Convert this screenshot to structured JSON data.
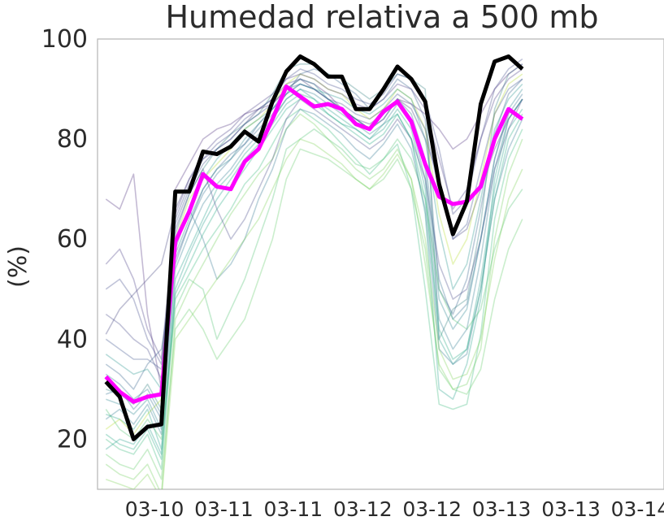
{
  "chart_data": {
    "type": "line",
    "title": "Humedad relativa a 500 mb",
    "ylabel": "(%)",
    "xlabel": "",
    "ylim": [
      10,
      100
    ],
    "yticks": [
      20,
      40,
      60,
      80,
      100
    ],
    "x_range": [
      -0.6,
      40.2
    ],
    "xtick_positions": [
      3.5,
      8.5,
      13.5,
      18.5,
      23.5,
      28.5,
      33.5,
      38.5
    ],
    "xtick_labels": [
      "03-10",
      "03-11",
      "03-11",
      "03-12",
      "03-12",
      "03-13",
      "03-13",
      "03-14"
    ],
    "grid": false,
    "legend": "none",
    "series": [
      {
        "color": "#000000",
        "role": "highlight",
        "values": [
          31.5,
          28.5,
          20,
          22.5,
          23,
          69.5,
          69.5,
          77.5,
          77,
          78.5,
          81.5,
          79.5,
          87.5,
          93.5,
          96.5,
          95,
          92.5,
          92.5,
          86,
          86,
          90,
          94.5,
          92,
          87.5,
          71,
          61,
          67.5,
          87,
          95.5,
          96.5,
          94
        ]
      },
      {
        "color": "#ff00ff",
        "role": "highlight",
        "values": [
          32.5,
          29.5,
          27.5,
          28.5,
          29,
          59.5,
          65.5,
          73,
          70.5,
          70,
          75.5,
          78,
          84,
          90.5,
          88.5,
          86.5,
          87,
          86,
          83,
          82,
          85.5,
          87.5,
          83.5,
          75,
          68.5,
          67,
          67.5,
          70.5,
          80,
          86,
          84
        ]
      },
      {
        "color": "#3b3b7a",
        "values": [
          41,
          46,
          49,
          52,
          55,
          66,
          72,
          76,
          78,
          80,
          83,
          86,
          88,
          91,
          92,
          90,
          88,
          86,
          84,
          83,
          85,
          88,
          86,
          80,
          72,
          60,
          62,
          70,
          78,
          84,
          88
        ]
      },
      {
        "color": "#2e5e8a",
        "values": [
          35,
          33,
          30,
          35,
          38,
          55,
          63,
          70,
          74,
          77,
          79,
          83,
          86,
          89,
          93,
          94,
          93,
          91,
          89,
          86,
          88,
          92,
          90,
          84,
          50,
          45,
          52,
          66,
          81,
          89,
          92
        ]
      },
      {
        "color": "#2a7b7b",
        "values": [
          30,
          29,
          27,
          31,
          26,
          61,
          69,
          74,
          78,
          81,
          83,
          85,
          89,
          94,
          95,
          95,
          93,
          92,
          90,
          88,
          90,
          93,
          92,
          90,
          40,
          46,
          48,
          63,
          86,
          93,
          95
        ]
      },
      {
        "color": "#1f9e89",
        "values": [
          25,
          24,
          22,
          26,
          18,
          52,
          58,
          64,
          70,
          73,
          77,
          80,
          84,
          88,
          90,
          88,
          85,
          83,
          82,
          80,
          83,
          85,
          80,
          65,
          30,
          28,
          35,
          48,
          72,
          84,
          88
        ]
      },
      {
        "color": "#35b779",
        "values": [
          20,
          18,
          17,
          21,
          14,
          48,
          53,
          58,
          62,
          66,
          71,
          74,
          79,
          84,
          86,
          84,
          82,
          79,
          76,
          73,
          76,
          79,
          70,
          50,
          27,
          26,
          27,
          41,
          64,
          76,
          82
        ]
      },
      {
        "color": "#6ece58",
        "values": [
          15,
          13,
          12,
          15,
          9,
          44,
          50,
          55,
          60,
          65,
          69,
          73,
          76,
          82,
          85,
          83,
          80,
          77,
          74,
          72,
          74,
          78,
          72,
          55,
          35,
          30,
          31,
          38,
          60,
          73,
          80
        ]
      },
      {
        "color": "#b5de2b",
        "values": [
          22,
          24,
          21,
          25,
          28,
          60,
          68,
          72,
          75,
          78,
          82,
          84,
          87,
          91,
          93,
          92,
          90,
          89,
          86,
          84,
          86,
          90,
          88,
          82,
          65,
          55,
          60,
          72,
          85,
          91,
          93
        ]
      },
      {
        "color": "#482878",
        "values": [
          68,
          66,
          73,
          45,
          30,
          70,
          75,
          80,
          82,
          83,
          85,
          86,
          87,
          90,
          92,
          91,
          89,
          86,
          84,
          82,
          84,
          88,
          87,
          85,
          82,
          78,
          80,
          85,
          90,
          93,
          95
        ]
      },
      {
        "color": "#3e4989",
        "values": [
          50,
          52,
          48,
          40,
          35,
          64,
          71,
          76,
          79,
          81,
          84,
          86,
          88,
          92,
          94,
          93,
          91,
          90,
          88,
          87,
          89,
          93,
          92,
          88,
          78,
          65,
          68,
          80,
          90,
          94,
          96
        ]
      },
      {
        "color": "#26828e",
        "values": [
          28,
          27,
          25,
          28,
          22,
          57,
          64,
          70,
          74,
          76,
          80,
          83,
          86,
          90,
          92,
          91,
          88,
          86,
          84,
          82,
          85,
          88,
          84,
          74,
          48,
          42,
          46,
          60,
          76,
          86,
          90
        ]
      },
      {
        "color": "#1f9a8a",
        "values": [
          18,
          20,
          19,
          23,
          17,
          50,
          57,
          63,
          68,
          72,
          76,
          79,
          83,
          87,
          89,
          88,
          86,
          84,
          82,
          80,
          82,
          86,
          82,
          70,
          40,
          35,
          38,
          52,
          70,
          82,
          86
        ]
      },
      {
        "color": "#4ac16d",
        "values": [
          26,
          22,
          20,
          24,
          20,
          46,
          52,
          50,
          40,
          46,
          52,
          60,
          68,
          78,
          80,
          82,
          80,
          78,
          75,
          74,
          76,
          80,
          76,
          68,
          50,
          44,
          42,
          46,
          58,
          66,
          70
        ]
      },
      {
        "color": "#2c728e",
        "values": [
          33,
          31,
          28,
          30,
          25,
          58,
          66,
          60,
          52,
          55,
          60,
          68,
          74,
          82,
          86,
          85,
          83,
          81,
          78,
          76,
          79,
          83,
          78,
          66,
          38,
          35,
          37,
          50,
          68,
          78,
          84
        ]
      },
      {
        "color": "#414487",
        "values": [
          45,
          43,
          40,
          38,
          32,
          62,
          69,
          74,
          66,
          60,
          64,
          70,
          76,
          84,
          88,
          86,
          84,
          82,
          80,
          78,
          80,
          84,
          80,
          72,
          55,
          48,
          50,
          60,
          74,
          82,
          88
        ]
      },
      {
        "color": "#5ec962",
        "values": [
          17,
          15,
          14,
          18,
          12,
          42,
          46,
          42,
          36,
          40,
          44,
          52,
          60,
          72,
          78,
          77,
          76,
          74,
          72,
          70,
          72,
          76,
          70,
          58,
          34,
          30,
          29,
          34,
          48,
          58,
          64
        ]
      },
      {
        "color": "#21918c",
        "values": [
          37,
          35,
          33,
          34,
          30,
          60,
          66,
          72,
          76,
          79,
          82,
          84,
          86,
          89,
          91,
          90,
          89,
          88,
          86,
          85,
          87,
          90,
          88,
          80,
          62,
          50,
          55,
          68,
          82,
          88,
          91
        ]
      },
      {
        "color": "#2a788e",
        "values": [
          24,
          26,
          23,
          27,
          21,
          54,
          61,
          67,
          71,
          74,
          78,
          81,
          84,
          88,
          90,
          89,
          87,
          85,
          83,
          81,
          83,
          87,
          83,
          72,
          44,
          38,
          42,
          56,
          74,
          84,
          88
        ]
      },
      {
        "color": "#3b528b",
        "values": [
          40,
          38,
          36,
          36,
          34,
          63,
          70,
          75,
          78,
          80,
          83,
          85,
          87,
          90,
          91,
          90,
          88,
          87,
          85,
          84,
          86,
          89,
          87,
          82,
          70,
          60,
          63,
          74,
          85,
          90,
          92
        ]
      },
      {
        "color": "#7ad151",
        "values": [
          12,
          11,
          10,
          13,
          8,
          40,
          44,
          48,
          52,
          56,
          60,
          64,
          70,
          76,
          80,
          79,
          77,
          75,
          72,
          70,
          73,
          77,
          72,
          60,
          38,
          32,
          33,
          40,
          56,
          68,
          74
        ]
      },
      {
        "color": "#22a884",
        "values": [
          21,
          19,
          18,
          22,
          16,
          49,
          55,
          61,
          66,
          70,
          74,
          78,
          82,
          86,
          88,
          87,
          85,
          83,
          81,
          79,
          81,
          85,
          80,
          68,
          42,
          36,
          38,
          50,
          68,
          80,
          85
        ]
      },
      {
        "color": "#443983",
        "values": [
          55,
          58,
          52,
          42,
          36,
          65,
          72,
          77,
          80,
          82,
          85,
          87,
          89,
          92,
          93,
          92,
          90,
          89,
          87,
          86,
          88,
          91,
          90,
          86,
          76,
          66,
          70,
          80,
          88,
          92,
          94
        ]
      },
      {
        "color": "#2f6c8e",
        "values": [
          29,
          30,
          26,
          29,
          24,
          56,
          63,
          69,
          73,
          76,
          79,
          82,
          85,
          89,
          91,
          90,
          88,
          86,
          84,
          82,
          84,
          88,
          85,
          76,
          52,
          44,
          47,
          60,
          76,
          85,
          89
        ]
      }
    ]
  }
}
